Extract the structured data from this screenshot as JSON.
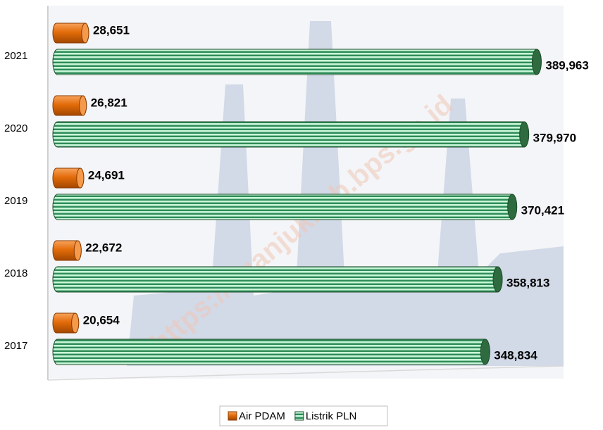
{
  "chart_data": {
    "type": "bar",
    "orientation": "horizontal",
    "categories": [
      "2017",
      "2018",
      "2019",
      "2020",
      "2021"
    ],
    "series": [
      {
        "name": "Air PDAM",
        "color": "#e36c0a",
        "values": [
          20654,
          22672,
          24691,
          26821,
          28651
        ],
        "value_labels": [
          "20,654",
          "22,672",
          "24,691",
          "26,821",
          "28,651"
        ]
      },
      {
        "name": "Listrik PLN",
        "color": "#3cb371",
        "values": [
          348834,
          358813,
          370421,
          379970,
          389963
        ],
        "value_labels": [
          "348,834",
          "358,813",
          "370,421",
          "379,970",
          "389,963"
        ]
      }
    ],
    "xlim": [
      0,
      410000
    ],
    "legend": "bottom",
    "watermark": "https://nganjukkab.bps.go.id"
  }
}
